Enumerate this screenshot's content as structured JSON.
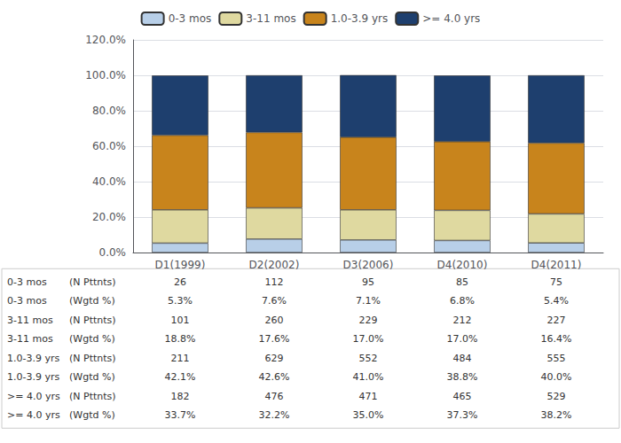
{
  "chart_data": {
    "type": "bar",
    "stacked": true,
    "categories": [
      "D1(1999)",
      "D2(2002)",
      "D3(2006)",
      "D4(2010)",
      "D4(2011)"
    ],
    "series": [
      {
        "name": "0-3 mos",
        "color": "#b8cfe8",
        "values": [
          5.3,
          7.6,
          7.1,
          6.8,
          5.4
        ]
      },
      {
        "name": "3-11 mos",
        "color": "#dfd9a0",
        "values": [
          18.8,
          17.6,
          17.0,
          17.0,
          16.4
        ]
      },
      {
        "name": "1.0-3.9 yrs",
        "color": "#c8841c",
        "values": [
          42.1,
          42.6,
          41.0,
          38.8,
          40.0
        ]
      },
      {
        "name": ">= 4.0 yrs",
        "color": "#1e3f6e",
        "values": [
          33.7,
          32.2,
          35.0,
          37.3,
          38.2
        ]
      }
    ],
    "ylim": [
      0,
      120
    ],
    "yticks": [
      {
        "value": 0,
        "label": "0.0%"
      },
      {
        "value": 20,
        "label": "20.0%"
      },
      {
        "value": 40,
        "label": "40.0%"
      },
      {
        "value": 60,
        "label": "60.0%"
      },
      {
        "value": 80,
        "label": "80.0%"
      },
      {
        "value": 100,
        "label": "100.0%"
      },
      {
        "value": 120,
        "label": "120.0%"
      }
    ],
    "grid": true,
    "legend": "top",
    "table": [
      [
        "0-3 mos",
        "(N Pttnts)",
        "26",
        "112",
        "95",
        "85",
        "75"
      ],
      [
        "0-3 mos",
        "(Wgtd %)",
        "5.3%",
        "7.6%",
        "7.1%",
        "6.8%",
        "5.4%"
      ],
      [
        "3-11 mos",
        "(N Pttnts)",
        "101",
        "260",
        "229",
        "212",
        "227"
      ],
      [
        "3-11 mos",
        "(Wgtd %)",
        "18.8%",
        "17.6%",
        "17.0%",
        "17.0%",
        "16.4%"
      ],
      [
        "1.0-3.9 yrs",
        "(N Pttnts)",
        "211",
        "629",
        "552",
        "484",
        "555"
      ],
      [
        "1.0-3.9 yrs",
        "(Wgtd %)",
        "42.1%",
        "42.6%",
        "41.0%",
        "38.8%",
        "40.0%"
      ],
      [
        ">= 4.0 yrs",
        "(N Pttnts)",
        "182",
        "476",
        "471",
        "465",
        "529"
      ],
      [
        ">= 4.0 yrs",
        "(Wgtd %)",
        "33.7%",
        "32.2%",
        "35.0%",
        "37.3%",
        "38.2%"
      ]
    ]
  }
}
